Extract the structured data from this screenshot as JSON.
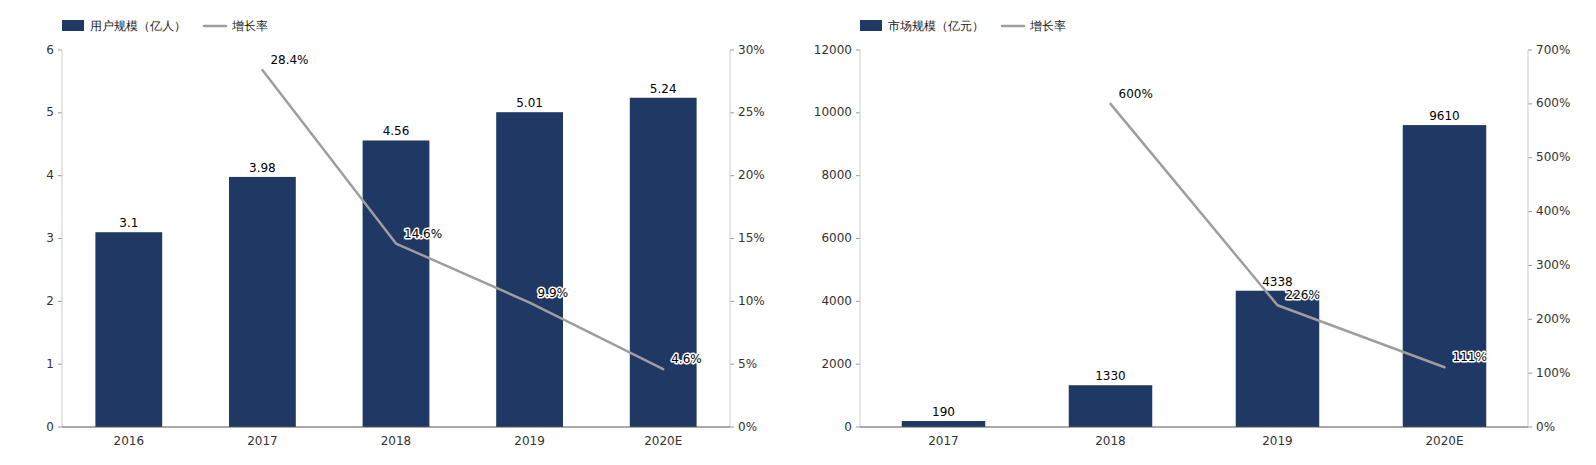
{
  "chart_data": [
    {
      "type": "bar",
      "categories": [
        "2016",
        "2017",
        "2018",
        "2019",
        "2020E"
      ],
      "series": [
        {
          "name": "用户规模（亿人）",
          "type": "bar",
          "color": "#1F3864",
          "values": [
            3.1,
            3.98,
            4.56,
            5.01,
            5.24
          ]
        },
        {
          "name": "增长率",
          "type": "line",
          "color": "#9E9E9E",
          "axis": "y2",
          "values": [
            null,
            0.284,
            0.146,
            0.099,
            0.046
          ],
          "value_labels": [
            null,
            "28.4%",
            "14.6%",
            "9.9%",
            "4.6%"
          ]
        }
      ],
      "ylim": [
        0,
        6
      ],
      "yticks": [
        0,
        1,
        2,
        3,
        4,
        5,
        6
      ],
      "y2lim": [
        0,
        0.3
      ],
      "y2ticks": [
        {
          "value": 0,
          "label": "0%"
        },
        {
          "value": 0.05,
          "label": "5%"
        },
        {
          "value": 0.1,
          "label": "10%"
        },
        {
          "value": 0.15,
          "label": "15%"
        },
        {
          "value": 0.2,
          "label": "20%"
        },
        {
          "value": 0.25,
          "label": "25%"
        },
        {
          "value": 0.3,
          "label": "30%"
        }
      ],
      "data_labels": true,
      "legend": "upper left",
      "grid": false
    },
    {
      "type": "bar",
      "categories": [
        "2017",
        "2018",
        "2019",
        "2020E"
      ],
      "series": [
        {
          "name": "市场规模（亿元）",
          "type": "bar",
          "color": "#1F3864",
          "values": [
            190,
            1330,
            4338,
            9610
          ]
        },
        {
          "name": "增长率",
          "type": "line",
          "color": "#9E9E9E",
          "axis": "y2",
          "values": [
            null,
            6.0,
            2.26,
            1.11
          ],
          "value_labels": [
            null,
            "600%",
            "226%",
            "111%"
          ]
        }
      ],
      "ylim": [
        0,
        12000
      ],
      "yticks": [
        0,
        2000,
        4000,
        6000,
        8000,
        10000,
        12000
      ],
      "y2lim": [
        0,
        7.0
      ],
      "y2ticks": [
        {
          "value": 0,
          "label": "0%"
        },
        {
          "value": 1.0,
          "label": "100%"
        },
        {
          "value": 2.0,
          "label": "200%"
        },
        {
          "value": 3.0,
          "label": "300%"
        },
        {
          "value": 4.0,
          "label": "400%"
        },
        {
          "value": 5.0,
          "label": "500%"
        },
        {
          "value": 6.0,
          "label": "600%"
        },
        {
          "value": 7.0,
          "label": "700%"
        }
      ],
      "data_labels": true,
      "legend": "upper left",
      "grid": false
    }
  ]
}
